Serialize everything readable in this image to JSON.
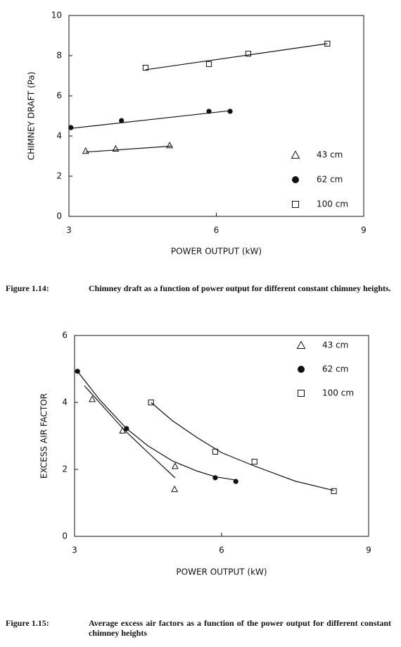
{
  "chart_data": [
    {
      "type": "scatter",
      "y_label": "CHIMNEY DRAFT (Pa)",
      "x_label": "POWER OUTPUT (kW)",
      "xlim": [
        3,
        9
      ],
      "xticks": [
        3,
        6,
        9
      ],
      "ylim": [
        0,
        10
      ],
      "yticks": [
        0,
        2,
        4,
        6,
        8,
        10
      ],
      "caption_label": "Figure 1.14:",
      "caption": "Chimney draft as a function of power output for different constant chimney heights.",
      "series": [
        {
          "name": "43 cm",
          "marker": "triangle",
          "color": "#111111",
          "x": [
            3.34,
            3.95,
            5.05
          ],
          "values": [
            3.26,
            3.37,
            3.54
          ],
          "fit": {
            "x": [
              3.34,
              5.1
            ],
            "y": [
              3.2,
              3.5
            ]
          }
        },
        {
          "name": "62 cm",
          "marker": "circle",
          "color": "#111111",
          "x": [
            3.04,
            4.07,
            5.85,
            6.28
          ],
          "values": [
            4.42,
            4.77,
            5.23,
            5.23
          ],
          "fit": {
            "x": [
              3.04,
              6.28
            ],
            "y": [
              4.38,
              5.26
            ]
          }
        },
        {
          "name": "100 cm",
          "marker": "square",
          "color": "#111111",
          "x": [
            4.56,
            5.85,
            6.65,
            8.26
          ],
          "values": [
            7.4,
            7.58,
            8.1,
            8.6
          ],
          "fit": {
            "x": [
              4.56,
              8.26
            ],
            "y": [
              7.3,
              8.6
            ]
          }
        }
      ]
    },
    {
      "type": "scatter",
      "y_label": "EXCESS AIR FACTOR",
      "x_label": "POWER OUTPUT (kW)",
      "xlim": [
        3,
        9
      ],
      "xticks": [
        3,
        6,
        9
      ],
      "ylim": [
        0,
        6
      ],
      "yticks": [
        0,
        2,
        4,
        6
      ],
      "caption_label": "Figure 1.15:",
      "caption": "Average excess air factors as a function of the power output for different constant chimney heights",
      "series": [
        {
          "name": "43 cm",
          "marker": "triangle",
          "color": "#111111",
          "x": [
            3.36,
            3.98,
            5.05,
            5.04
          ],
          "values": [
            4.1,
            3.16,
            2.1,
            1.41
          ],
          "fit": {
            "x": [
              3.2,
              3.6,
              4.0,
              4.5,
              5.05
            ],
            "y": [
              4.5,
              3.85,
              3.2,
              2.5,
              1.75
            ]
          }
        },
        {
          "name": "62 cm",
          "marker": "circle",
          "color": "#111111",
          "x": [
            3.06,
            4.06,
            5.87,
            6.29
          ],
          "values": [
            4.93,
            3.22,
            1.75,
            1.64
          ],
          "fit": {
            "x": [
              3.06,
              3.5,
              4.06,
              4.5,
              5.0,
              5.5,
              5.87,
              6.29
            ],
            "y": [
              4.93,
              4.1,
              3.22,
              2.7,
              2.25,
              1.95,
              1.78,
              1.68
            ]
          }
        },
        {
          "name": "100 cm",
          "marker": "square",
          "color": "#111111",
          "x": [
            4.56,
            5.87,
            6.67,
            8.29
          ],
          "values": [
            4.0,
            2.53,
            2.23,
            1.35
          ],
          "fit": {
            "x": [
              4.56,
              5.0,
              5.5,
              6.0,
              6.67,
              7.5,
              8.29
            ],
            "y": [
              4.0,
              3.45,
              2.95,
              2.5,
              2.1,
              1.65,
              1.37
            ]
          }
        }
      ]
    }
  ]
}
